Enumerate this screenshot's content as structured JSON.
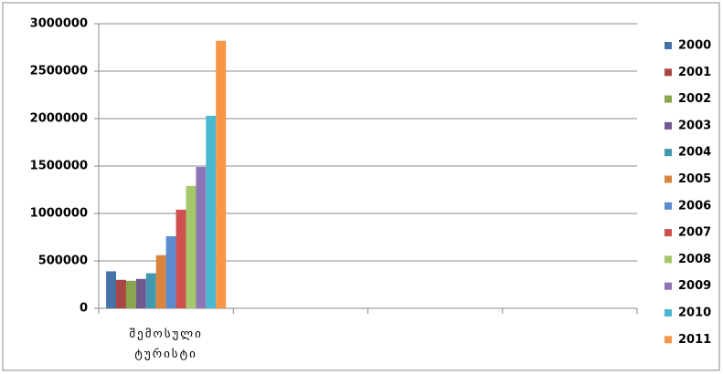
{
  "chart_data": {
    "type": "bar",
    "categories": [
      "შემოსული ტურისტი",
      null,
      null,
      null
    ],
    "series": [
      {
        "name": "2000",
        "color": "#4572a7",
        "values": [
          390000,
          null,
          null,
          null
        ]
      },
      {
        "name": "2001",
        "color": "#aa4643",
        "values": [
          300000,
          null,
          null,
          null
        ]
      },
      {
        "name": "2002",
        "color": "#89a54e",
        "values": [
          290000,
          null,
          null,
          null
        ]
      },
      {
        "name": "2003",
        "color": "#71588f",
        "values": [
          310000,
          null,
          null,
          null
        ]
      },
      {
        "name": "2004",
        "color": "#4198af",
        "values": [
          370000,
          null,
          null,
          null
        ]
      },
      {
        "name": "2005",
        "color": "#db843d",
        "values": [
          560000,
          null,
          null,
          null
        ]
      },
      {
        "name": "2006",
        "color": "#5b8bd0",
        "values": [
          760000,
          null,
          null,
          null
        ]
      },
      {
        "name": "2007",
        "color": "#d05050",
        "values": [
          1040000,
          null,
          null,
          null
        ]
      },
      {
        "name": "2008",
        "color": "#a5c86a",
        "values": [
          1290000,
          null,
          null,
          null
        ]
      },
      {
        "name": "2009",
        "color": "#8e76b5",
        "values": [
          1490000,
          null,
          null,
          null
        ]
      },
      {
        "name": "2010",
        "color": "#4bb8d2",
        "values": [
          2030000,
          null,
          null,
          null
        ]
      },
      {
        "name": "2011",
        "color": "#f79646",
        "values": [
          2820000,
          null,
          null,
          null
        ]
      }
    ],
    "ylim": [
      0,
      3000000
    ],
    "yticks": [
      0,
      500000,
      1000000,
      1500000,
      2000000,
      2500000,
      3000000
    ],
    "grid": true,
    "legend": "right"
  }
}
